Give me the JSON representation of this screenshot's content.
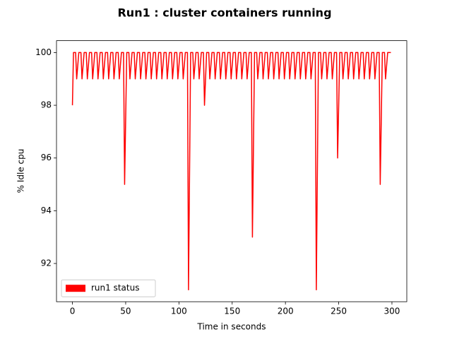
{
  "chart_data": {
    "type": "line",
    "title": "Run1 : cluster containers running",
    "x_label": "Time  in seconds",
    "y_label": "% Idle cpu",
    "xlim": [
      -14.95,
      313.95
    ],
    "ylim": [
      90.55,
      100.45
    ],
    "xticks": [
      0,
      50,
      100,
      150,
      200,
      250,
      300
    ],
    "yticks": [
      92,
      94,
      96,
      98,
      100
    ],
    "legend": "lower left",
    "x": [
      0,
      1,
      3,
      4,
      6,
      8,
      9,
      11,
      13,
      14,
      16,
      18,
      19,
      21,
      23,
      24,
      26,
      28,
      29,
      31,
      33,
      34,
      36,
      38,
      39,
      41,
      43,
      44,
      46,
      48,
      49,
      51,
      53,
      54,
      56,
      58,
      59,
      61,
      63,
      64,
      66,
      68,
      69,
      71,
      73,
      74,
      76,
      78,
      79,
      81,
      83,
      84,
      86,
      88,
      89,
      91,
      93,
      94,
      96,
      98,
      99,
      101,
      103,
      104,
      106,
      108,
      109,
      111,
      113,
      114,
      116,
      118,
      119,
      121,
      123,
      124,
      126,
      128,
      129,
      131,
      133,
      134,
      136,
      138,
      139,
      141,
      143,
      144,
      146,
      148,
      149,
      151,
      153,
      154,
      156,
      158,
      159,
      161,
      163,
      164,
      166,
      168,
      169,
      171,
      173,
      174,
      176,
      178,
      179,
      181,
      183,
      184,
      186,
      188,
      189,
      191,
      193,
      194,
      196,
      198,
      199,
      201,
      203,
      204,
      206,
      208,
      209,
      211,
      213,
      214,
      216,
      218,
      219,
      221,
      223,
      224,
      226,
      228,
      229,
      231,
      233,
      234,
      236,
      238,
      239,
      241,
      243,
      244,
      246,
      248,
      249,
      251,
      253,
      254,
      256,
      258,
      259,
      261,
      263,
      264,
      266,
      268,
      269,
      271,
      273,
      274,
      276,
      278,
      279,
      281,
      283,
      284,
      286,
      288,
      289,
      291,
      293,
      294,
      296,
      298,
      299
    ],
    "series": [
      {
        "name": "run1 status",
        "color": "#ff0000",
        "values": [
          98,
          100,
          100,
          99,
          100,
          100,
          99,
          100,
          100,
          99,
          100,
          100,
          99,
          100,
          100,
          99,
          100,
          100,
          99,
          100,
          100,
          99,
          100,
          100,
          99,
          100,
          100,
          99,
          100,
          100,
          95,
          100,
          100,
          99,
          100,
          100,
          99,
          100,
          100,
          99,
          100,
          100,
          99,
          100,
          100,
          99,
          100,
          100,
          99,
          100,
          100,
          99,
          100,
          100,
          99,
          100,
          100,
          99,
          100,
          100,
          99,
          100,
          100,
          99,
          100,
          100,
          91,
          100,
          100,
          99,
          100,
          100,
          99,
          100,
          100,
          98,
          100,
          100,
          99,
          100,
          100,
          99,
          100,
          100,
          99,
          100,
          100,
          99,
          100,
          100,
          99,
          100,
          100,
          99,
          100,
          100,
          99,
          100,
          100,
          99,
          100,
          100,
          93,
          100,
          100,
          99,
          100,
          100,
          99,
          100,
          100,
          99,
          100,
          100,
          99,
          100,
          100,
          99,
          100,
          100,
          99,
          100,
          100,
          99,
          100,
          100,
          99,
          100,
          100,
          99,
          100,
          100,
          99,
          100,
          100,
          99,
          100,
          100,
          91,
          100,
          100,
          99,
          100,
          100,
          99,
          100,
          100,
          99,
          100,
          100,
          96,
          100,
          100,
          99,
          100,
          100,
          99,
          100,
          100,
          99,
          100,
          100,
          99,
          100,
          100,
          99,
          100,
          100,
          99,
          100,
          100,
          99,
          100,
          100,
          95,
          100,
          100,
          99,
          100,
          100,
          100
        ]
      }
    ]
  }
}
